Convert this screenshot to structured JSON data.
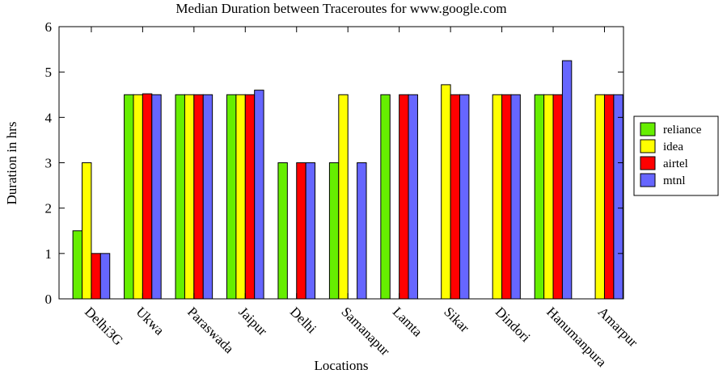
{
  "chart_data": {
    "type": "bar",
    "title": "Median Duration between Traceroutes for www.google.com",
    "xlabel": "Locations",
    "ylabel": "Duration in hrs",
    "ylim": [
      0,
      6
    ],
    "yticks": [
      0,
      1,
      2,
      3,
      4,
      5,
      6
    ],
    "grid": false,
    "legend_position": "right",
    "categories": [
      "Delhi3G",
      "Ukwa",
      "Paraswada",
      "Jaipur",
      "Delhi",
      "Samanapur",
      "Lamta",
      "Sikar",
      "Dindori",
      "Hanumanpura",
      "Amarpur"
    ],
    "series": [
      {
        "name": "reliance",
        "color": "#66ee00",
        "values": [
          1.5,
          4.5,
          4.5,
          4.5,
          3.0,
          3.0,
          4.5,
          0,
          0,
          4.5,
          0
        ]
      },
      {
        "name": "idea",
        "color": "#ffff00",
        "values": [
          3.0,
          4.5,
          4.5,
          4.5,
          0,
          4.5,
          0,
          4.72,
          4.5,
          4.5,
          4.5
        ]
      },
      {
        "name": "airtel",
        "color": "#ff0000",
        "values": [
          1.0,
          4.52,
          4.5,
          4.5,
          3.0,
          0,
          4.5,
          4.5,
          4.5,
          4.5,
          4.5
        ]
      },
      {
        "name": "mtnl",
        "color": "#6666ff",
        "values": [
          1.0,
          4.5,
          4.5,
          4.6,
          3.0,
          3.0,
          4.5,
          4.5,
          4.5,
          5.25,
          4.5
        ]
      }
    ]
  }
}
